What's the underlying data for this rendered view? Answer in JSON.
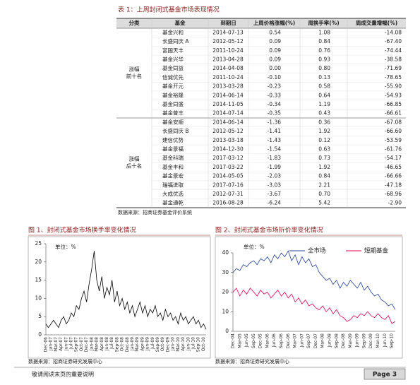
{
  "table": {
    "title": "表 1：上周封闭式基金市场表现情况",
    "headers": [
      "分类",
      "基金",
      "到期日",
      "上周价格涨幅(%)",
      "周换手率(%)",
      "周成交量增幅(%)"
    ],
    "groups": [
      {
        "label": [
          "涨幅",
          "前十名"
        ],
        "rows": [
          [
            "基金兴和",
            "2014-07-13",
            "0.54",
            "1.08",
            "-14.08"
          ],
          [
            "长盛同庆 A",
            "2012-05-12",
            "0.09",
            "0.84",
            "-67.40"
          ],
          [
            "富国天丰",
            "2011-10-24",
            "0.09",
            "0.76",
            "-74.44"
          ],
          [
            "基金兴华",
            "2013-04-28",
            "0.09",
            "0.93",
            "-38.58"
          ],
          [
            "基金同益",
            "2014-04-08",
            "0.00",
            "0.80",
            "-71.69"
          ],
          [
            "信诚优先",
            "2011-10-24",
            "-0.10",
            "0.13",
            "-78.65"
          ],
          [
            "基金开元",
            "2013-03-28",
            "-0.23",
            "0.58",
            "-55.90"
          ],
          [
            "基金裕隆",
            "2014-06-14",
            "-0.33",
            "0.64",
            "-54.93"
          ],
          [
            "基金同盛",
            "2014-11-05",
            "-0.34",
            "1.19",
            "-66.85"
          ],
          [
            "基金普丰",
            "2014-07-14",
            "-0.35",
            "0.43",
            "-66.61"
          ]
        ]
      },
      {
        "label": [
          "涨幅",
          "后十名"
        ],
        "rows": [
          [
            "基金安顺",
            "2014-06-14",
            "-1.36",
            "0.36",
            "-67.08"
          ],
          [
            "长盛同庆 B",
            "2012-05-12",
            "-1.41",
            "1.92",
            "-66.60"
          ],
          [
            "建信优势",
            "2013-03-18",
            "-1.43",
            "0.12",
            "-53.59"
          ],
          [
            "基金景福",
            "2014-12-30",
            "-1.54",
            "0.63",
            "-61.76"
          ],
          [
            "基金科瑞",
            "2017-03-12",
            "-1.83",
            "0.73",
            "-54.17"
          ],
          [
            "基金丰和",
            "2017-03-22",
            "-1.99",
            "1.92",
            "-46.65"
          ],
          [
            "基金景宏",
            "2014-05-05",
            "-2.03",
            "0.84",
            "-66.66"
          ],
          [
            "瑞福进取",
            "2017-07-16",
            "-3.03",
            "2.21",
            "-47.18"
          ],
          [
            "大成优选",
            "2012-07-31",
            "-3.67",
            "0.70",
            "-68.96"
          ],
          [
            "基金通乾",
            "2016-08-28",
            "-6.24",
            "5.42",
            "-2.90"
          ]
        ]
      }
    ],
    "source": "数据来源：招商证券基金评价系统"
  },
  "chart_data": [
    {
      "type": "line",
      "title": "图 1、封闭式基金市场换手率变化情况",
      "annotation": "单位：%",
      "source": "数据来源：招商证券研究发展中心",
      "categories": [
        "Dec-06",
        null,
        "Jan-07",
        null,
        "Mar-07",
        null,
        "Apr-07",
        null,
        "Jun-07",
        null,
        "Jul-07",
        null,
        "Sep-07",
        null,
        "Oct-07",
        null,
        "Dec-07",
        null,
        "Jan-08",
        null,
        "Mar-08",
        null,
        "Apr-08",
        null,
        "Jun-08",
        null,
        "Jul-08",
        null,
        "Sep-08",
        null,
        "Oct-08",
        null,
        "Dec-08",
        null,
        "Jan-09",
        null,
        "Mar-09",
        null,
        "Apr-09",
        null,
        "Jun-09",
        null,
        "Jul-09",
        null,
        "Sep-09",
        null,
        "Oct-09",
        null,
        "Dec-09",
        null,
        "Jan-10",
        null,
        "Mar-10",
        null,
        "Apr-10",
        null,
        "Jun-10",
        null,
        "Jul-10",
        null,
        "Sep-10",
        null,
        "Oct-10",
        null
      ],
      "series": [
        {
          "name": null,
          "color": "#000000",
          "values": [
            3,
            2,
            3,
            4,
            3,
            2,
            4,
            5,
            3,
            4,
            6,
            5,
            8,
            7,
            10,
            12,
            9,
            14,
            18,
            23,
            15,
            12,
            16,
            10,
            13,
            11,
            15,
            9,
            12,
            8,
            10,
            7,
            9,
            6,
            8,
            5,
            7,
            9,
            6,
            8,
            5,
            7,
            6,
            8,
            5,
            6,
            4,
            7,
            5,
            6,
            4,
            5,
            3,
            6,
            4,
            5,
            3,
            4,
            5,
            3,
            4,
            2,
            3,
            1.5
          ]
        }
      ],
      "ylim": [
        0,
        25
      ],
      "yticks": [
        0,
        5,
        10,
        15,
        20,
        25
      ]
    },
    {
      "type": "line",
      "title": "图 2、封闭式基金市场折价率变化情况",
      "annotation": "单位：%",
      "source": "数据来源：招商证券研究发展中心",
      "categories": [
        "Dec-04",
        null,
        "Mar-05",
        null,
        "Jun-05",
        null,
        "Sep-05",
        null,
        "Dec-05",
        null,
        "Mar-06",
        null,
        "Jun-06",
        null,
        "Sep-06",
        null,
        "Dec-06",
        null,
        "Mar-07",
        null,
        "Jun-07",
        null,
        "Sep-07",
        null,
        "Dec-07",
        null,
        "Mar-08",
        null,
        "Jun-08",
        null,
        "Sep-08",
        null,
        "Dec-08",
        null,
        "Mar-09",
        null,
        "Jun-09",
        null,
        "Sep-09",
        null,
        "Dec-09",
        null,
        "Mar-10",
        null,
        "Jun-10",
        null,
        "Sep-10",
        null
      ],
      "series": [
        {
          "name": "全市场",
          "color": "#1f3f99",
          "values": [
            30,
            32,
            31,
            34,
            33,
            35,
            36,
            34,
            37,
            36,
            38,
            35,
            39,
            37,
            40,
            38,
            41,
            36,
            39,
            34,
            38,
            35,
            37,
            33,
            34,
            30,
            28,
            26,
            27,
            24,
            26,
            22,
            25,
            23,
            26,
            24,
            22,
            25,
            21,
            23,
            20,
            18,
            19,
            16,
            15,
            13,
            14,
            11
          ]
        },
        {
          "name": "短期基金",
          "color": "#e0004d",
          "values": [
            20,
            22,
            18,
            21,
            19,
            22,
            20,
            18,
            21,
            19,
            20,
            17,
            19,
            21,
            18,
            20,
            17,
            19,
            15,
            17,
            14,
            16,
            13,
            14,
            12,
            11,
            13,
            10,
            12,
            9,
            11,
            8,
            7,
            5,
            6,
            8,
            7,
            9,
            8,
            10,
            8,
            7,
            9,
            7,
            6,
            8,
            4,
            5
          ]
        }
      ],
      "ylim": [
        0,
        40
      ],
      "yticks": [
        0,
        10,
        20,
        30,
        40
      ],
      "legend": "top"
    }
  ],
  "footer": {
    "note": "敬请阅读末页的重要说明",
    "page": "Page 3"
  }
}
